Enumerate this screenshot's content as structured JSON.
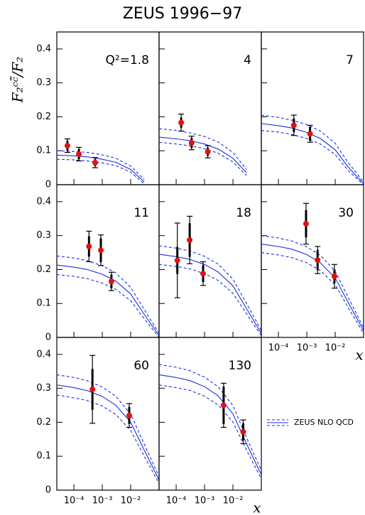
{
  "title": "ZEUS 1996−97",
  "axes": {
    "ylabel": "F₂ᶜᶜ̄/F₂",
    "xlabel": "x",
    "xscale": "log",
    "xlim": [
      2.5e-05,
      0.1
    ],
    "ylim": [
      0,
      0.45
    ],
    "yticks": [
      0,
      0.1,
      0.2,
      0.3,
      0.4
    ],
    "xticks": [
      {
        "value": 0.0001,
        "label": "10⁻⁴"
      },
      {
        "value": 0.001,
        "label": "10⁻³"
      },
      {
        "value": 0.01,
        "label": "10⁻²"
      }
    ],
    "curve_x": [
      2.5e-05,
      0.0001,
      0.0003,
      0.001,
      0.003,
      0.01,
      0.03,
      0.1
    ],
    "curve_color": "#1a2fe0",
    "point_color": "#e41010",
    "annotation_color": "#ff0000",
    "legend": "ZEUS NLO QCD"
  },
  "chart_data": [
    {
      "type": "scatter",
      "annotation": "Q²=1.8",
      "x": [
        5.9e-05,
        0.00015,
        0.00056
      ],
      "values": [
        0.115,
        0.09,
        0.065
      ],
      "stat_err": [
        0.015,
        0.015,
        0.01
      ],
      "total_err": [
        0.02,
        0.02,
        0.015
      ],
      "curve": {
        "central": [
          0.087,
          0.085,
          0.082,
          0.075,
          0.066,
          0.045,
          0.008,
          null
        ],
        "upper": [
          0.1,
          0.098,
          0.095,
          0.088,
          0.078,
          0.055,
          0.015,
          null
        ],
        "lower": [
          0.075,
          0.073,
          0.07,
          0.064,
          0.056,
          0.037,
          0.002,
          null
        ]
      }
    },
    {
      "type": "scatter",
      "annotation": "4",
      "x": [
        0.00015,
        0.00035,
        0.0013
      ],
      "values": [
        0.183,
        0.123,
        0.097
      ],
      "stat_err": [
        0.015,
        0.015,
        0.012
      ],
      "total_err": [
        0.025,
        0.02,
        0.018
      ],
      "curve": {
        "central": [
          0.14,
          0.135,
          0.13,
          0.12,
          0.105,
          0.078,
          0.035,
          null
        ],
        "upper": [
          0.165,
          0.16,
          0.153,
          0.142,
          0.126,
          0.095,
          0.045,
          null
        ],
        "lower": [
          0.125,
          0.12,
          0.115,
          0.106,
          0.093,
          0.067,
          0.027,
          null
        ]
      }
    },
    {
      "type": "scatter",
      "annotation": "7",
      "x": [
        0.00035,
        0.0013
      ],
      "values": [
        0.175,
        0.15
      ],
      "stat_err": [
        0.02,
        0.02
      ],
      "total_err": [
        0.03,
        0.025
      ],
      "curve": {
        "central": [
          0.18,
          0.174,
          0.167,
          0.154,
          0.136,
          0.103,
          0.05,
          0.003
        ],
        "upper": [
          0.205,
          0.198,
          0.19,
          0.177,
          0.158,
          0.122,
          0.063,
          0.008
        ],
        "lower": [
          0.16,
          0.155,
          0.148,
          0.136,
          0.12,
          0.089,
          0.04,
          0
        ]
      }
    },
    {
      "type": "scatter",
      "annotation": "11",
      "x": [
        0.00034,
        0.00089,
        0.0021
      ],
      "values": [
        0.268,
        0.257,
        0.165
      ],
      "stat_err": [
        0.03,
        0.035,
        0.02
      ],
      "total_err": [
        0.045,
        0.045,
        0.027
      ],
      "curve": {
        "central": [
          0.213,
          0.207,
          0.2,
          0.186,
          0.166,
          0.128,
          0.068,
          0.005
        ],
        "upper": [
          0.24,
          0.234,
          0.226,
          0.211,
          0.19,
          0.148,
          0.082,
          0.012
        ],
        "lower": [
          0.185,
          0.18,
          0.173,
          0.16,
          0.142,
          0.108,
          0.055,
          0
        ]
      }
    },
    {
      "type": "scatter",
      "annotation": "18",
      "x": [
        0.00011,
        0.0003,
        0.00089
      ],
      "values": [
        0.227,
        0.287,
        0.188
      ],
      "stat_err": [
        0.04,
        0.05,
        0.025
      ],
      "total_err": [
        0.11,
        0.07,
        0.035
      ],
      "curve": {
        "central": [
          0.245,
          0.238,
          0.23,
          0.215,
          0.193,
          0.152,
          0.085,
          0.012
        ],
        "upper": [
          0.27,
          0.263,
          0.255,
          0.239,
          0.216,
          0.172,
          0.1,
          0.02
        ],
        "lower": [
          0.215,
          0.209,
          0.202,
          0.188,
          0.168,
          0.13,
          0.07,
          0.005
        ]
      }
    },
    {
      "type": "scatter",
      "annotation": "30",
      "x": [
        0.00094,
        0.0024,
        0.0094
      ],
      "values": [
        0.335,
        0.228,
        0.18
      ],
      "stat_err": [
        0.04,
        0.03,
        0.02
      ],
      "total_err": [
        0.06,
        0.04,
        0.035
      ],
      "curve": {
        "central": [
          0.275,
          0.268,
          0.26,
          0.244,
          0.22,
          0.175,
          0.1,
          0.02
        ],
        "upper": [
          0.3,
          0.293,
          0.284,
          0.267,
          0.242,
          0.195,
          0.115,
          0.028
        ],
        "lower": [
          0.25,
          0.243,
          0.235,
          0.22,
          0.197,
          0.155,
          0.085,
          0.012
        ]
      }
    },
    {
      "type": "scatter",
      "annotation": "60",
      "x": [
        0.00045,
        0.0089
      ],
      "values": [
        0.297,
        0.22
      ],
      "stat_err": [
        0.06,
        0.025
      ],
      "total_err": [
        0.1,
        0.035
      ],
      "curve": {
        "central": [
          0.31,
          0.302,
          0.293,
          0.276,
          0.25,
          0.2,
          0.118,
          0.03
        ],
        "upper": [
          0.34,
          0.332,
          0.322,
          0.304,
          0.277,
          0.224,
          0.136,
          0.04
        ],
        "lower": [
          0.28,
          0.272,
          0.264,
          0.248,
          0.223,
          0.176,
          0.1,
          0.02
        ]
      }
    },
    {
      "type": "scatter",
      "annotation": "130",
      "x": [
        0.0047,
        0.023
      ],
      "values": [
        0.25,
        0.172
      ],
      "stat_err": [
        0.055,
        0.025
      ],
      "total_err": [
        0.065,
        0.035
      ],
      "curve": {
        "central": [
          0.34,
          0.332,
          0.323,
          0.305,
          0.278,
          0.225,
          0.137,
          0.045
        ],
        "upper": [
          0.37,
          0.362,
          0.352,
          0.333,
          0.305,
          0.249,
          0.155,
          0.058
        ],
        "lower": [
          0.31,
          0.302,
          0.294,
          0.277,
          0.251,
          0.201,
          0.118,
          0.033
        ]
      }
    }
  ]
}
